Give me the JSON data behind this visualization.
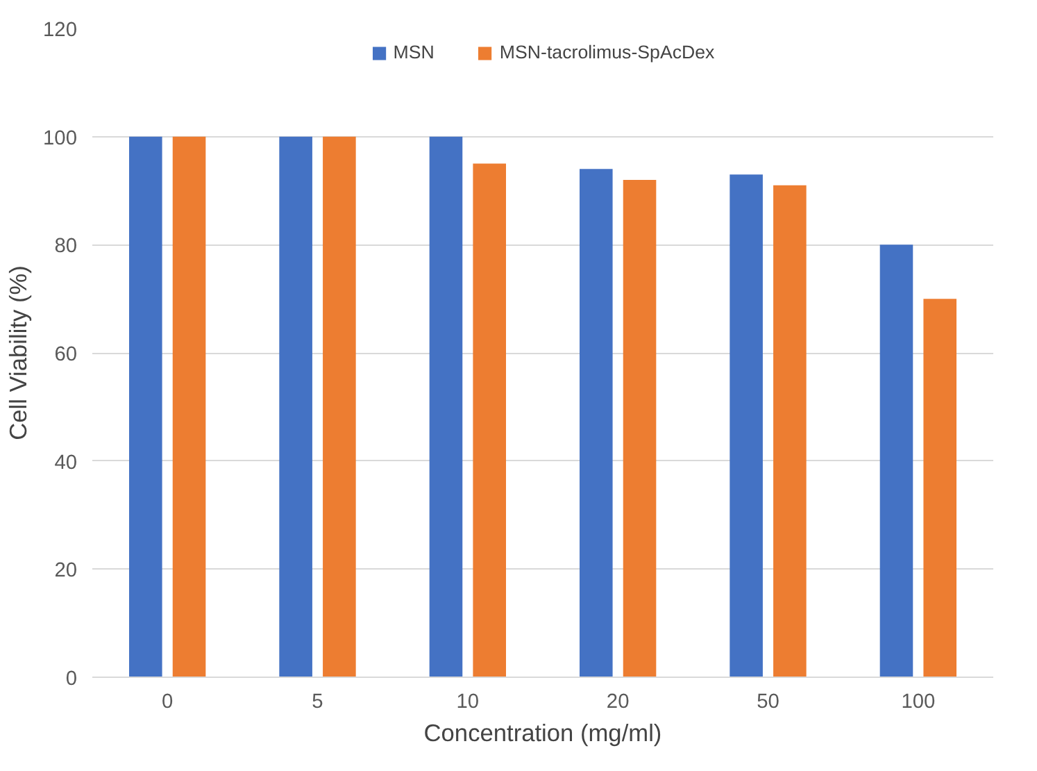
{
  "chart_data": {
    "type": "bar",
    "xlabel": "Concentration (mg/ml)",
    "ylabel": "Cell Viability (%)",
    "categories": [
      "0",
      "5",
      "10",
      "20",
      "50",
      "100"
    ],
    "series": [
      {
        "name": "MSN",
        "color": "#4472c4",
        "values": [
          100,
          100,
          100,
          94,
          93,
          80
        ]
      },
      {
        "name": "MSN-tacrolimus-SpAcDex",
        "color": "#ed7d31",
        "values": [
          100,
          100,
          95,
          92,
          91,
          70
        ]
      }
    ],
    "ylim": [
      0,
      120
    ],
    "yticks": [
      0,
      20,
      40,
      60,
      80,
      100,
      120
    ],
    "grid": "y",
    "legend": "top"
  }
}
